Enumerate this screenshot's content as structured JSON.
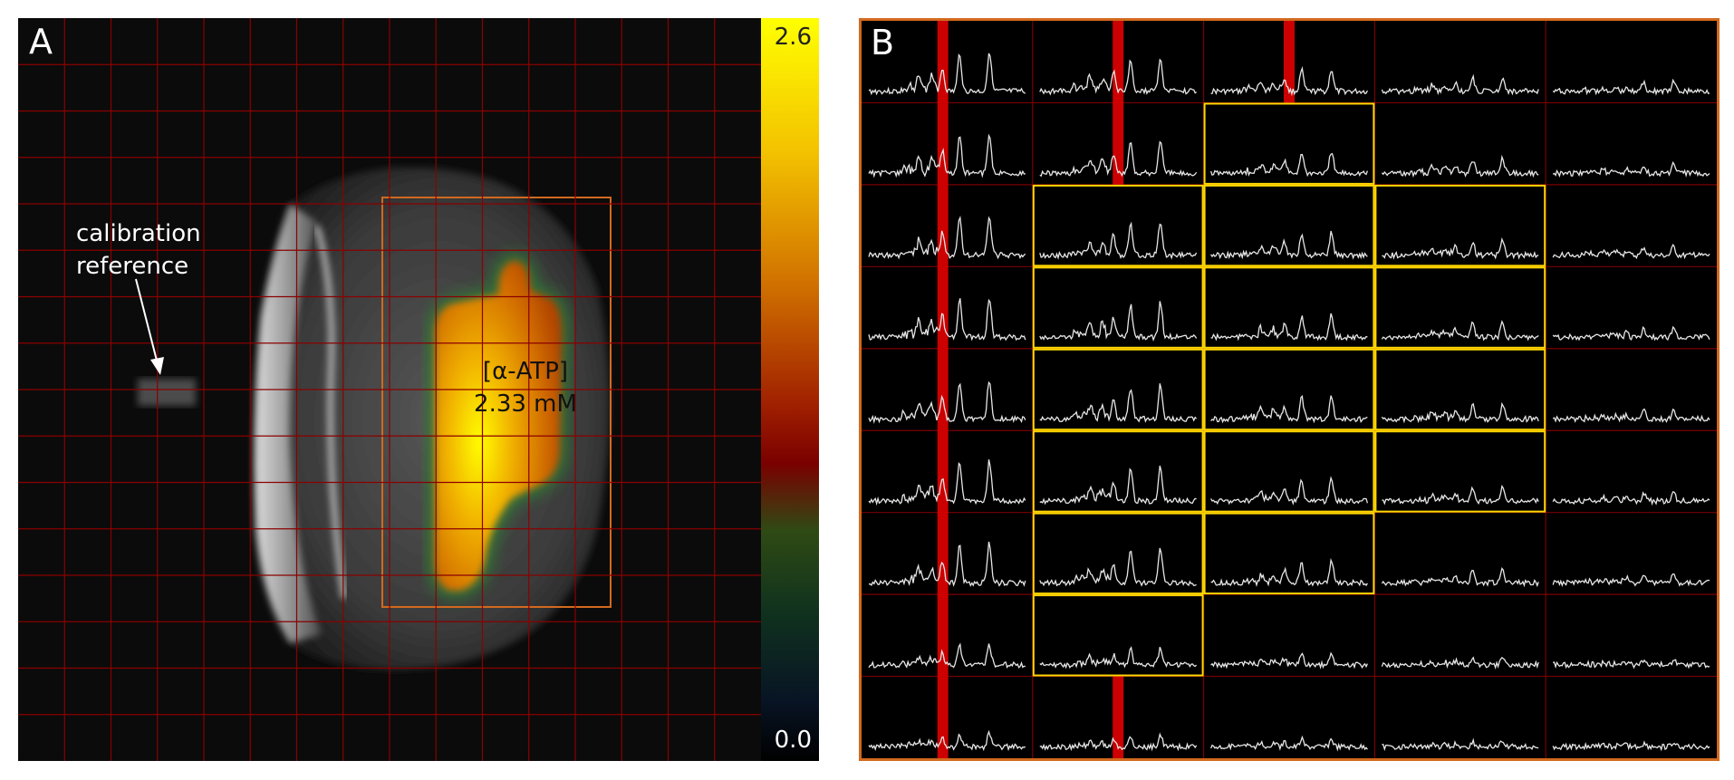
{
  "panel_a": {
    "letter": "A",
    "calibration_label_line1": "calibration",
    "calibration_label_line2": "reference",
    "concentration_label_line1": "[α-ATP]",
    "concentration_label_line2": "2.33 mM",
    "colorbar": {
      "max": "2.6",
      "min": "0.0"
    },
    "grid_color": "#8b0000",
    "roi_color": "#d2691e"
  },
  "panel_b": {
    "letter": "B",
    "grid_rows": 9,
    "grid_cols": 5,
    "border_color": "#d2691e",
    "highlight_color": "#ffd700",
    "marker_color": "#cc0000",
    "highlighted_cells": [
      [
        1,
        2
      ],
      [
        2,
        1
      ],
      [
        2,
        2
      ],
      [
        2,
        3
      ],
      [
        3,
        1
      ],
      [
        3,
        2
      ],
      [
        3,
        3
      ],
      [
        4,
        1
      ],
      [
        4,
        2
      ],
      [
        4,
        3
      ],
      [
        5,
        1
      ],
      [
        5,
        2
      ],
      [
        5,
        3
      ],
      [
        6,
        1
      ],
      [
        6,
        2
      ],
      [
        7,
        1
      ]
    ]
  }
}
